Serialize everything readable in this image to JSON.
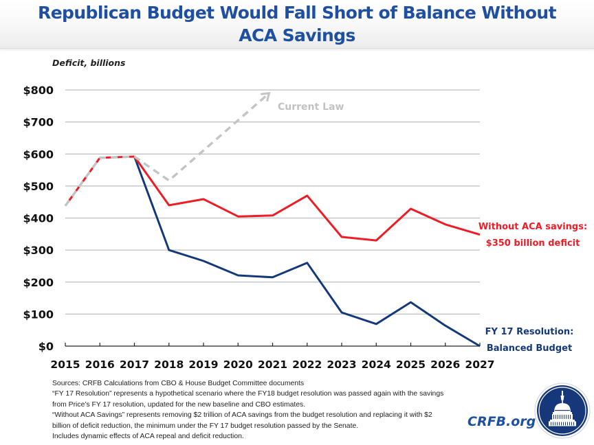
{
  "header": {
    "title_line1": "Republican Budget Would Fall Short of Balance Without",
    "title_line2": "ACA Savings"
  },
  "chart_data": {
    "type": "line",
    "title": "Republican Budget Would Fall Short of Balance Without ACA Savings",
    "ylabel": "Deficit, billions",
    "xlabel": "",
    "x": [
      2015,
      2016,
      2017,
      2018,
      2019,
      2020,
      2021,
      2022,
      2023,
      2024,
      2025,
      2026,
      2027
    ],
    "ylim": [
      0,
      800
    ],
    "yticks": [
      0,
      100,
      200,
      300,
      400,
      500,
      600,
      700,
      800
    ],
    "ytick_labels": [
      "$0",
      "$100",
      "$200",
      "$300",
      "$400",
      "$500",
      "$600",
      "$700",
      "$800"
    ],
    "grid": true,
    "series": [
      {
        "name": "Current Law",
        "style": "dashed-arrow",
        "color": "#c4c4c4",
        "x": [
          2015,
          2016,
          2017,
          2018,
          2020.9
        ],
        "values": [
          438,
          588,
          592,
          517,
          790
        ]
      },
      {
        "name": "Without ACA savings",
        "style": "solid",
        "color": "#ee1c25",
        "x": [
          2015,
          2016,
          2017,
          2018,
          2019,
          2020,
          2021,
          2022,
          2023,
          2024,
          2025,
          2026,
          2027
        ],
        "values": [
          438,
          588,
          592,
          440,
          459,
          405,
          408,
          470,
          341,
          330,
          429,
          380,
          348
        ]
      },
      {
        "name": "FY 17 Resolution",
        "style": "solid",
        "color": "#13397a",
        "x": [
          2017,
          2018,
          2019,
          2020,
          2021,
          2022,
          2023,
          2024,
          2025,
          2026,
          2027
        ],
        "values": [
          592,
          300,
          266,
          221,
          215,
          260,
          105,
          69,
          137,
          64,
          0
        ]
      }
    ],
    "annotations": [
      {
        "id": "current_law",
        "text": "Current Law",
        "color": "#c4c4c4"
      },
      {
        "id": "without_aca_1",
        "text": "Without ACA savings:",
        "color": "#ee1c25"
      },
      {
        "id": "without_aca_2",
        "text": "$350 billion deficit",
        "color": "#ee1c25"
      },
      {
        "id": "fy17_1",
        "text": "FY 17 Resolution:",
        "color": "#13397a"
      },
      {
        "id": "fy17_2",
        "text": "Balanced Budget",
        "color": "#13397a"
      }
    ]
  },
  "notes": [
    "Sources: CRFB Calculations from CBO & House Budget Committee documents",
    "“FY 17 Resolution” represents a hypothetical scenario where the FY18 budget resolution was passed again with the savings",
    "from Price’s FY 17 resolution, updated for the new baseline and CBO estimates.",
    "“Without ACA Savings” represents removing $2 trillion of ACA savings from the budget resolution and replacing it with $2",
    "billion of deficit reduction, the minimum under the FY 17 budget resolution passed by the Senate.",
    "Includes dynamic effects of ACA repeal and deficit reduction."
  ],
  "brand": {
    "text": "CRFB.org",
    "logo_icon": "capitol-dome-icon",
    "color": "#1f4fa0",
    "logo_color": "#16387a"
  }
}
